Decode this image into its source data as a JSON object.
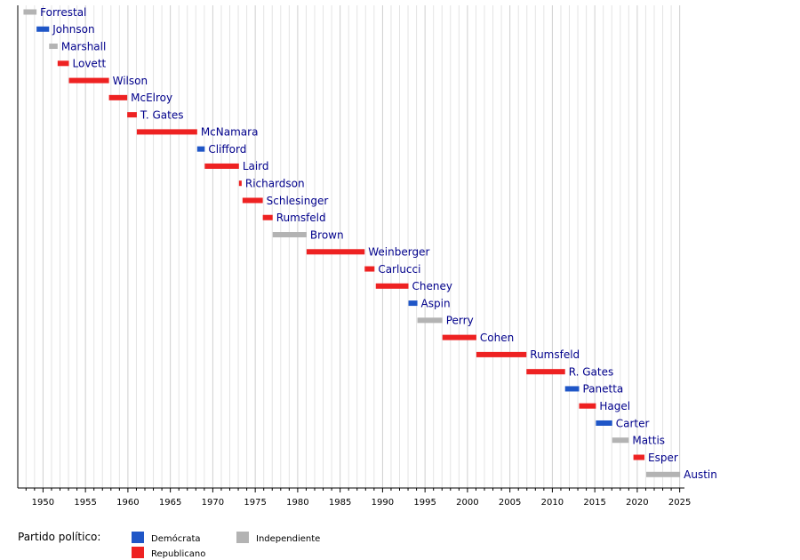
{
  "chart_data": {
    "type": "timeline",
    "x_ticks": [
      1950,
      1955,
      1960,
      1965,
      1970,
      1975,
      1980,
      1985,
      1990,
      1995,
      2000,
      2005,
      2010,
      2015,
      2020,
      2025
    ],
    "xlim": [
      1947,
      2026
    ],
    "grid": true,
    "colors": {
      "D": "#1f56c7",
      "R": "#ee2222",
      "I": "#b3b3b3"
    },
    "bars": [
      {
        "name": "Forrestal",
        "start": 1947.7,
        "end": 1949.24,
        "party": "I"
      },
      {
        "name": "Johnson",
        "start": 1949.24,
        "end": 1950.72,
        "party": "D"
      },
      {
        "name": "Marshall",
        "start": 1950.72,
        "end": 1951.72,
        "party": "I"
      },
      {
        "name": "Lovett",
        "start": 1951.72,
        "end": 1953.05,
        "party": "R"
      },
      {
        "name": "Wilson",
        "start": 1953.05,
        "end": 1957.77,
        "party": "R"
      },
      {
        "name": "McElroy",
        "start": 1957.77,
        "end": 1959.92,
        "party": "R"
      },
      {
        "name": "T. Gates",
        "start": 1959.92,
        "end": 1961.05,
        "party": "R"
      },
      {
        "name": "McNamara",
        "start": 1961.05,
        "end": 1968.16,
        "party": "R"
      },
      {
        "name": "Clifford",
        "start": 1968.16,
        "end": 1969.05,
        "party": "D"
      },
      {
        "name": "Laird",
        "start": 1969.05,
        "end": 1973.08,
        "party": "R"
      },
      {
        "name": "Richardson",
        "start": 1973.08,
        "end": 1973.4,
        "party": "R"
      },
      {
        "name": "Schlesinger",
        "start": 1973.5,
        "end": 1975.89,
        "party": "R"
      },
      {
        "name": "Rumsfeld",
        "start": 1975.89,
        "end": 1977.05,
        "party": "R"
      },
      {
        "name": "Brown",
        "start": 1977.05,
        "end": 1981.05,
        "party": "I"
      },
      {
        "name": "Weinberger",
        "start": 1981.05,
        "end": 1987.89,
        "party": "R"
      },
      {
        "name": "Carlucci",
        "start": 1987.89,
        "end": 1989.05,
        "party": "R"
      },
      {
        "name": "Cheney",
        "start": 1989.2,
        "end": 1993.05,
        "party": "R"
      },
      {
        "name": "Aspin",
        "start": 1993.05,
        "end": 1994.1,
        "party": "D"
      },
      {
        "name": "Perry",
        "start": 1994.1,
        "end": 1997.05,
        "party": "I"
      },
      {
        "name": "Cohen",
        "start": 1997.05,
        "end": 2001.05,
        "party": "R"
      },
      {
        "name": "Rumsfeld",
        "start": 2001.05,
        "end": 2006.95,
        "party": "R"
      },
      {
        "name": "R. Gates",
        "start": 2006.95,
        "end": 2011.5,
        "party": "R"
      },
      {
        "name": "Panetta",
        "start": 2011.5,
        "end": 2013.15,
        "party": "D"
      },
      {
        "name": "Hagel",
        "start": 2013.15,
        "end": 2015.13,
        "party": "R"
      },
      {
        "name": "Carter",
        "start": 2015.13,
        "end": 2017.05,
        "party": "D"
      },
      {
        "name": "Mattis",
        "start": 2017.05,
        "end": 2019.0,
        "party": "I"
      },
      {
        "name": "Esper",
        "start": 2019.55,
        "end": 2020.85,
        "party": "R"
      },
      {
        "name": "Austin",
        "start": 2021.06,
        "end": 2025.05,
        "party": "I"
      }
    ],
    "legend": {
      "title": "Partido político:",
      "items": [
        {
          "label": "Demócrata",
          "party": "D"
        },
        {
          "label": "Republicano",
          "party": "R"
        },
        {
          "label": "Independiente",
          "party": "I"
        }
      ]
    }
  }
}
